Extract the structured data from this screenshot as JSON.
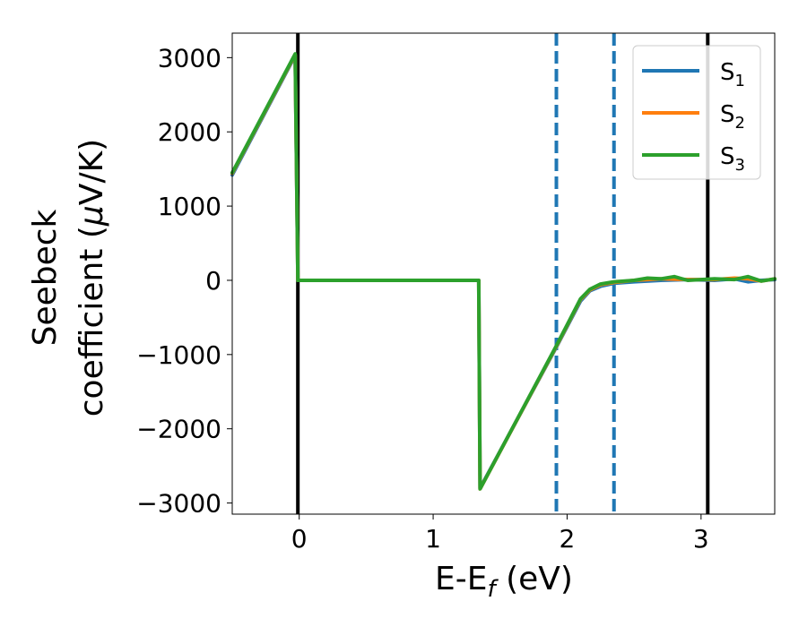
{
  "chart_data": {
    "type": "line",
    "title": "",
    "xlabel": {
      "main": "E-E",
      "sub": "f",
      "unit": " (eV)"
    },
    "ylabel": {
      "line1": "Seebeck",
      "line2": "coefficient  (",
      "mu": "μ",
      "unit": "V/K)"
    },
    "xlim": [
      -0.5,
      3.55
    ],
    "ylim": [
      -3150,
      3330
    ],
    "xticks": [
      0,
      1,
      2,
      3
    ],
    "yticks": [
      3000,
      2000,
      1000,
      0,
      -1000,
      -2000,
      -3000
    ],
    "xtick_labels": [
      "0",
      "1",
      "2",
      "3"
    ],
    "ytick_labels": [
      "3000",
      "2000",
      "1000",
      "0",
      "−1000",
      "−2000",
      "−3000"
    ],
    "grid": false,
    "legend_position": "top-right",
    "vlines": [
      {
        "x": -0.01,
        "color": "#000000",
        "style": "solid"
      },
      {
        "x": 3.05,
        "color": "#000000",
        "style": "solid"
      },
      {
        "x": 1.92,
        "color": "#1f77b4",
        "style": "dashed"
      },
      {
        "x": 2.35,
        "color": "#1f77b4",
        "style": "dashed"
      }
    ],
    "series": [
      {
        "name": "S",
        "sub": "1",
        "color": "#1f77b4",
        "x": [
          -0.5,
          -0.03,
          -0.02,
          -0.01,
          1.34,
          1.35,
          1.92,
          2.1,
          2.17,
          2.25,
          2.35,
          2.5,
          2.7,
          2.9,
          3.1,
          3.25,
          3.35,
          3.45,
          3.55
        ],
        "y": [
          1420,
          3030,
          1500,
          0,
          0,
          -2800,
          -900,
          -280,
          -140,
          -80,
          -40,
          -20,
          0,
          10,
          0,
          20,
          -20,
          0,
          10
        ]
      },
      {
        "name": "S",
        "sub": "2",
        "color": "#ff7f0e",
        "x": [
          -0.5,
          -0.03,
          -0.02,
          -0.01,
          1.34,
          1.35,
          1.92,
          2.1,
          2.17,
          2.25,
          2.35,
          2.5,
          2.7,
          2.9,
          3.1,
          3.25,
          3.35,
          3.45,
          3.55
        ],
        "y": [
          1440,
          3040,
          1500,
          0,
          0,
          -2810,
          -890,
          -260,
          -130,
          -60,
          -30,
          0,
          20,
          10,
          10,
          30,
          20,
          -10,
          20
        ]
      },
      {
        "name": "S",
        "sub": "3",
        "color": "#2ca02c",
        "x": [
          -0.5,
          -0.03,
          -0.02,
          -0.01,
          1.34,
          1.35,
          1.92,
          2.1,
          2.17,
          2.25,
          2.35,
          2.5,
          2.6,
          2.7,
          2.8,
          2.9,
          3.1,
          3.25,
          3.35,
          3.45,
          3.55
        ],
        "y": [
          1450,
          3050,
          1500,
          0,
          0,
          -2810,
          -880,
          -250,
          -120,
          -50,
          -20,
          0,
          30,
          20,
          50,
          0,
          20,
          10,
          50,
          -10,
          20
        ]
      }
    ]
  }
}
